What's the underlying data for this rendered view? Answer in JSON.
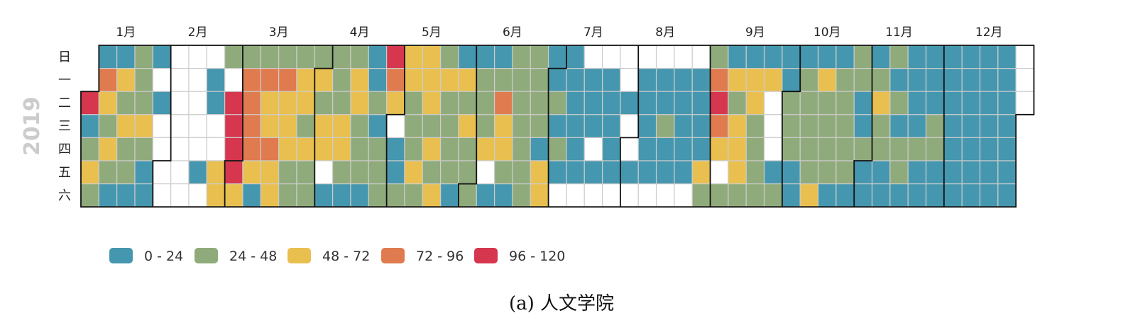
{
  "chart_data": {
    "type": "heatmap",
    "year": "2019",
    "weekday_labels": [
      "日",
      "一",
      "二",
      "三",
      "四",
      "五",
      "六"
    ],
    "month_labels": [
      "1月",
      "2月",
      "3月",
      "4月",
      "5月",
      "6月",
      "7月",
      "8月",
      "9月",
      "10月",
      "11月",
      "12月"
    ],
    "legend": [
      {
        "label": "0 - 24",
        "color": "#4597af"
      },
      {
        "label": "24 - 48",
        "color": "#90ab7b"
      },
      {
        "label": "48 - 72",
        "color": "#e9c04f"
      },
      {
        "label": "72 - 96",
        "color": "#e07b4f"
      },
      {
        "label": "96 - 120",
        "color": "#d6364e"
      }
    ],
    "empty_color": "#ffffff",
    "legend_position": "bottom-left",
    "weeks": [
      [
        null,
        null,
        4,
        0,
        1,
        2,
        1
      ],
      [
        0,
        3,
        2,
        1,
        2,
        1,
        0
      ],
      [
        0,
        2,
        1,
        2,
        1,
        1,
        0
      ],
      [
        1,
        1,
        1,
        2,
        1,
        0,
        0
      ],
      [
        0,
        -1,
        0,
        -1,
        -1,
        -1,
        -1
      ],
      [
        -1,
        -1,
        -1,
        -1,
        -1,
        -1,
        -1
      ],
      [
        -1,
        -1,
        -1,
        -1,
        -1,
        0,
        -1
      ],
      [
        -1,
        0,
        0,
        -1,
        -1,
        2,
        2
      ],
      [
        1,
        -1,
        4,
        4,
        4,
        4,
        2
      ],
      [
        1,
        3,
        3,
        3,
        3,
        2,
        0
      ],
      [
        1,
        3,
        2,
        2,
        3,
        2,
        2
      ],
      [
        1,
        3,
        2,
        2,
        2,
        1,
        1
      ],
      [
        1,
        2,
        2,
        1,
        2,
        1,
        1
      ],
      [
        1,
        2,
        1,
        2,
        2,
        -1,
        0
      ],
      [
        1,
        1,
        1,
        2,
        2,
        1,
        0
      ],
      [
        1,
        2,
        2,
        1,
        1,
        1,
        0
      ],
      [
        0,
        0,
        1,
        0,
        1,
        1,
        1
      ],
      [
        4,
        3,
        2,
        -1,
        0,
        0,
        1
      ],
      [
        2,
        2,
        1,
        1,
        1,
        2,
        1
      ],
      [
        2,
        2,
        2,
        1,
        2,
        1,
        2
      ],
      [
        1,
        2,
        1,
        1,
        1,
        1,
        0
      ],
      [
        0,
        2,
        1,
        2,
        1,
        1,
        1
      ],
      [
        0,
        1,
        1,
        1,
        2,
        -1,
        0
      ],
      [
        0,
        1,
        3,
        2,
        2,
        1,
        0
      ],
      [
        1,
        1,
        1,
        1,
        1,
        1,
        1
      ],
      [
        1,
        1,
        1,
        1,
        0,
        2,
        2
      ],
      [
        0,
        0,
        1,
        0,
        1,
        0,
        -1
      ],
      [
        0,
        0,
        0,
        0,
        0,
        0,
        -1
      ],
      [
        -1,
        0,
        0,
        0,
        -1,
        0,
        -1
      ],
      [
        -1,
        0,
        0,
        0,
        0,
        0,
        -1
      ],
      [
        -1,
        -1,
        0,
        -1,
        -1,
        0,
        -1
      ],
      [
        -1,
        0,
        0,
        0,
        0,
        0,
        -1
      ],
      [
        -1,
        0,
        0,
        1,
        0,
        0,
        -1
      ],
      [
        -1,
        0,
        0,
        0,
        0,
        0,
        -1
      ],
      [
        -1,
        0,
        0,
        0,
        0,
        2,
        1
      ],
      [
        1,
        3,
        4,
        3,
        2,
        -1,
        1
      ],
      [
        0,
        2,
        1,
        2,
        2,
        2,
        1
      ],
      [
        0,
        2,
        2,
        1,
        1,
        1,
        1
      ],
      [
        0,
        2,
        -1,
        -1,
        -1,
        0,
        1
      ],
      [
        0,
        0,
        1,
        1,
        1,
        0,
        0
      ],
      [
        0,
        1,
        1,
        1,
        1,
        1,
        2
      ],
      [
        0,
        2,
        1,
        1,
        1,
        1,
        0
      ],
      [
        0,
        1,
        1,
        1,
        1,
        1,
        0
      ],
      [
        1,
        1,
        0,
        0,
        1,
        0,
        0
      ],
      [
        0,
        1,
        2,
        1,
        1,
        0,
        0
      ],
      [
        1,
        0,
        1,
        0,
        1,
        1,
        0
      ],
      [
        0,
        0,
        0,
        0,
        1,
        0,
        0
      ],
      [
        0,
        0,
        0,
        1,
        1,
        0,
        0
      ],
      [
        0,
        0,
        0,
        0,
        0,
        0,
        0
      ],
      [
        0,
        0,
        0,
        0,
        0,
        0,
        0
      ],
      [
        0,
        0,
        0,
        0,
        0,
        0,
        0
      ],
      [
        0,
        0,
        0,
        0,
        0,
        0,
        0
      ],
      [
        -1,
        -1,
        -1,
        null,
        null,
        null,
        null
      ]
    ]
  },
  "caption": "(a) 人文学院"
}
